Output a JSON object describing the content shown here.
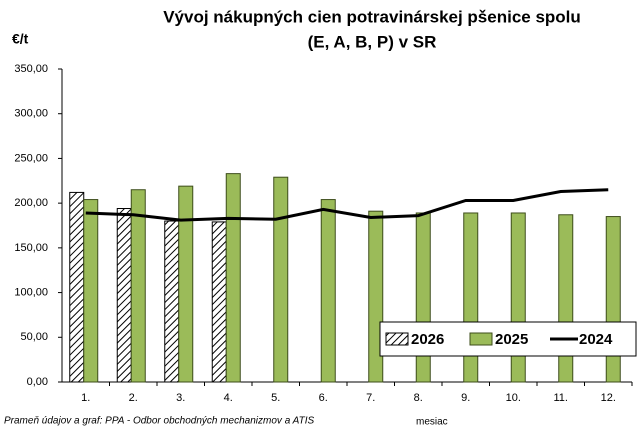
{
  "chart_data": {
    "type": "bar",
    "title_lines": [
      "Vývoj nákupných cien potravinárskej pšenice spolu",
      "(E, A, B, P) v SR"
    ],
    "y_label": "€/t",
    "x_label": "mesiac",
    "note": "Prameň údajov a graf: PPA - Odbor obchodných mechanizmov a  ATIS",
    "categories": [
      "1.",
      "2.",
      "3.",
      "4.",
      "5.",
      "6.",
      "7.",
      "8.",
      "9.",
      "10.",
      "11.",
      "12."
    ],
    "series": [
      {
        "name": "2026",
        "kind": "bar",
        "hatch": true,
        "color": "#000000",
        "values": [
          212,
          194,
          180,
          179,
          null,
          null,
          null,
          null,
          null,
          null,
          null,
          null
        ]
      },
      {
        "name": "2025",
        "kind": "bar",
        "color": "#9bbb59",
        "values": [
          204,
          215,
          219,
          233,
          229,
          204,
          191,
          189,
          189,
          189,
          187,
          185
        ]
      },
      {
        "name": "2024",
        "kind": "line",
        "color": "#000000",
        "values": [
          189,
          187,
          181,
          183,
          182,
          193,
          184,
          186,
          203,
          203,
          213,
          215
        ]
      }
    ],
    "ylim": [
      0,
      350
    ],
    "yticks": [
      {
        "value": 0,
        "label": "0,00"
      },
      {
        "value": 50,
        "label": "50,00"
      },
      {
        "value": 100,
        "label": "100,00"
      },
      {
        "value": 150,
        "label": "150,00"
      },
      {
        "value": 200,
        "label": "200,00"
      },
      {
        "value": 250,
        "label": "250,00"
      },
      {
        "value": 300,
        "label": "300,00"
      },
      {
        "value": 350,
        "label": "350,00"
      }
    ],
    "grid": false,
    "legend": "lower right"
  }
}
